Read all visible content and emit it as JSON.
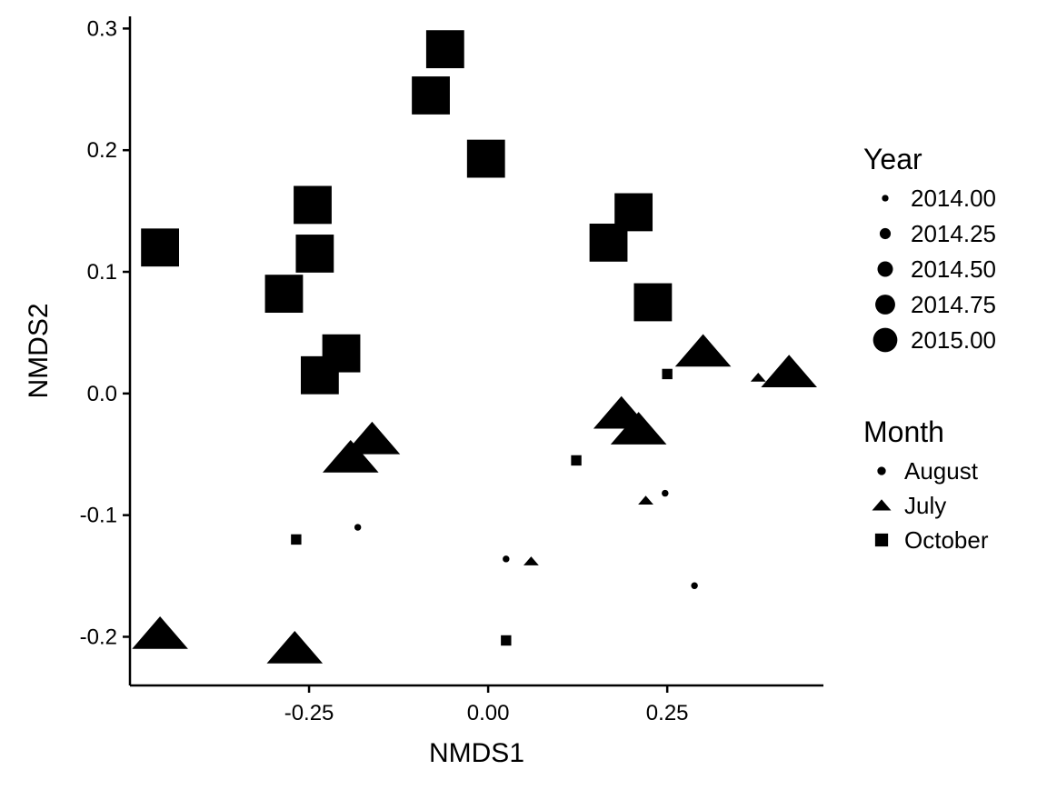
{
  "chart_data": {
    "type": "scatter",
    "xlabel": "NMDS1",
    "ylabel": "NMDS2",
    "xlim": [
      -0.5,
      0.468
    ],
    "ylim": [
      -0.24,
      0.31
    ],
    "x_ticks": [
      {
        "value": -0.25,
        "label": "-0.25"
      },
      {
        "value": 0.0,
        "label": "0.00"
      },
      {
        "value": 0.25,
        "label": "0.25"
      }
    ],
    "y_ticks": [
      {
        "value": -0.2,
        "label": "-0.2"
      },
      {
        "value": -0.1,
        "label": "-0.1"
      },
      {
        "value": 0.0,
        "label": "0.0"
      },
      {
        "value": 0.1,
        "label": "0.1"
      },
      {
        "value": 0.2,
        "label": "0.2"
      },
      {
        "value": 0.3,
        "label": "0.3"
      }
    ],
    "grid": false,
    "legend_position": "right",
    "legend_year": {
      "title": "Year",
      "entries": [
        {
          "value": 2014.0,
          "label": "2014.00"
        },
        {
          "value": 2014.25,
          "label": "2014.25"
        },
        {
          "value": 2014.5,
          "label": "2014.50"
        },
        {
          "value": 2014.75,
          "label": "2014.75"
        },
        {
          "value": 2015.0,
          "label": "2015.00"
        }
      ]
    },
    "legend_month": {
      "title": "Month",
      "entries": [
        {
          "shape": "circle",
          "label": "August"
        },
        {
          "shape": "triangle",
          "label": "July"
        },
        {
          "shape": "square",
          "label": "October"
        }
      ]
    },
    "points": [
      {
        "x": 0.025,
        "y": -0.136,
        "month": "August",
        "year": 2014
      },
      {
        "x": -0.182,
        "y": -0.11,
        "month": "August",
        "year": 2014
      },
      {
        "x": 0.247,
        "y": -0.082,
        "month": "August",
        "year": 2014
      },
      {
        "x": 0.288,
        "y": -0.158,
        "month": "August",
        "year": 2014
      },
      {
        "x": 0.06,
        "y": -0.138,
        "month": "July",
        "year": 2014
      },
      {
        "x": 0.22,
        "y": -0.088,
        "month": "July",
        "year": 2014
      },
      {
        "x": 0.377,
        "y": 0.013,
        "month": "July",
        "year": 2014
      },
      {
        "x": -0.458,
        "y": -0.198,
        "month": "July",
        "year": 2015
      },
      {
        "x": -0.27,
        "y": -0.21,
        "month": "July",
        "year": 2015
      },
      {
        "x": -0.192,
        "y": -0.053,
        "month": "July",
        "year": 2015
      },
      {
        "x": -0.162,
        "y": -0.038,
        "month": "July",
        "year": 2015
      },
      {
        "x": 0.186,
        "y": -0.017,
        "month": "July",
        "year": 2015
      },
      {
        "x": 0.21,
        "y": -0.03,
        "month": "July",
        "year": 2015
      },
      {
        "x": 0.3,
        "y": 0.034,
        "month": "July",
        "year": 2015
      },
      {
        "x": 0.42,
        "y": 0.017,
        "month": "July",
        "year": 2015
      },
      {
        "x": -0.268,
        "y": -0.12,
        "month": "October",
        "year": 2014
      },
      {
        "x": 0.025,
        "y": -0.203,
        "month": "October",
        "year": 2014
      },
      {
        "x": 0.123,
        "y": -0.055,
        "month": "October",
        "year": 2014
      },
      {
        "x": 0.25,
        "y": 0.016,
        "month": "October",
        "year": 2014
      },
      {
        "x": -0.458,
        "y": 0.12,
        "month": "October",
        "year": 2015
      },
      {
        "x": -0.285,
        "y": 0.082,
        "month": "October",
        "year": 2015
      },
      {
        "x": -0.245,
        "y": 0.155,
        "month": "October",
        "year": 2015
      },
      {
        "x": -0.242,
        "y": 0.115,
        "month": "October",
        "year": 2015
      },
      {
        "x": -0.205,
        "y": 0.033,
        "month": "October",
        "year": 2015
      },
      {
        "x": -0.235,
        "y": 0.015,
        "month": "October",
        "year": 2015
      },
      {
        "x": -0.08,
        "y": 0.245,
        "month": "October",
        "year": 2015
      },
      {
        "x": -0.06,
        "y": 0.283,
        "month": "October",
        "year": 2015
      },
      {
        "x": -0.003,
        "y": 0.193,
        "month": "October",
        "year": 2015
      },
      {
        "x": 0.168,
        "y": 0.124,
        "month": "October",
        "year": 2015
      },
      {
        "x": 0.203,
        "y": 0.149,
        "month": "October",
        "year": 2015
      },
      {
        "x": 0.23,
        "y": 0.075,
        "month": "October",
        "year": 2015
      }
    ]
  }
}
